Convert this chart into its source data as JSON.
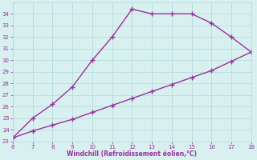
{
  "xlabel": "Windchill (Refroidissement éolien,°C)",
  "x_upper": [
    6,
    7,
    8,
    9,
    10,
    11,
    12,
    13,
    14,
    15,
    16,
    17,
    18
  ],
  "y_upper": [
    23.3,
    25.0,
    26.2,
    27.7,
    30.0,
    32.0,
    34.4,
    34.0,
    34.0,
    34.0,
    33.2,
    32.0,
    30.7
  ],
  "x_lower": [
    6,
    7,
    8,
    9,
    10,
    11,
    12,
    13,
    14,
    15,
    16,
    17,
    18
  ],
  "y_lower": [
    23.3,
    23.9,
    24.4,
    24.9,
    25.5,
    26.1,
    26.7,
    27.3,
    27.9,
    28.5,
    29.1,
    29.9,
    30.7
  ],
  "line_color": "#993399",
  "bg_color": "#d8f0f0",
  "grid_color": "#b0d8d8",
  "text_color": "#993399",
  "xlim": [
    6,
    18
  ],
  "ylim": [
    23,
    35
  ],
  "xticks": [
    6,
    7,
    8,
    9,
    10,
    11,
    12,
    13,
    14,
    15,
    16,
    17,
    18
  ],
  "yticks": [
    23,
    24,
    25,
    26,
    27,
    28,
    29,
    30,
    31,
    32,
    33,
    34
  ],
  "marker": "+",
  "markersize": 4,
  "linewidth": 1
}
